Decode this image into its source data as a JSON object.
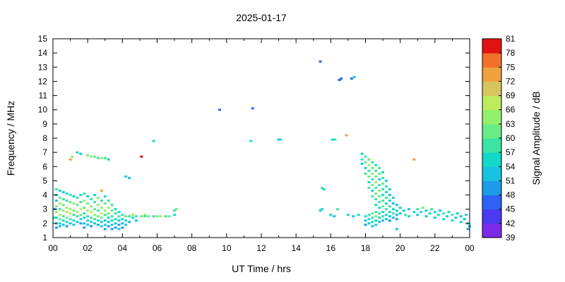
{
  "chart_data": {
    "type": "scatter",
    "title": "2025-01-17",
    "xlabel": "UT Time / hrs",
    "ylabel": "Frequency / MHz",
    "colorbar_label": "Signal Amplitude / dB",
    "xlim": [
      0,
      24
    ],
    "ylim": [
      1,
      15
    ],
    "x_tick_values": [
      0,
      2,
      4,
      6,
      8,
      10,
      12,
      14,
      16,
      18,
      20,
      22,
      24
    ],
    "x_tick_labels": [
      "00",
      "02",
      "04",
      "06",
      "08",
      "10",
      "12",
      "14",
      "16",
      "18",
      "20",
      "22",
      "00"
    ],
    "x_minor_tick_values": [
      1,
      3,
      5,
      7,
      9,
      11,
      13,
      15,
      17,
      19,
      21,
      23
    ],
    "y_tick_values": [
      1,
      2,
      3,
      4,
      5,
      6,
      7,
      8,
      9,
      10,
      11,
      12,
      13,
      14,
      15
    ],
    "colorbar": {
      "min": 39,
      "max": 81,
      "step": 3,
      "tick_values": [
        39,
        42,
        45,
        48,
        51,
        54,
        57,
        60,
        63,
        66,
        69,
        72,
        75,
        78,
        81
      ],
      "band_colors": [
        "#7D2AE8",
        "#4A3BF0",
        "#2E62F5",
        "#1E9BE8",
        "#17C3E3",
        "#12D9C8",
        "#3BE3A4",
        "#69EC85",
        "#93F06C",
        "#BCEB5C",
        "#D6C55F",
        "#EDA13F",
        "#F3702A",
        "#E31212"
      ]
    },
    "points": [
      [
        0.1,
        3.0,
        51
      ],
      [
        0.1,
        2.4,
        54
      ],
      [
        0.2,
        4.4,
        57
      ],
      [
        0.2,
        4.0,
        54
      ],
      [
        0.2,
        3.6,
        51
      ],
      [
        0.2,
        3.2,
        60
      ],
      [
        0.2,
        2.8,
        63
      ],
      [
        0.2,
        2.4,
        54
      ],
      [
        0.2,
        2.0,
        51
      ],
      [
        0.2,
        1.7,
        48
      ],
      [
        0.4,
        4.3,
        54
      ],
      [
        0.4,
        3.8,
        60
      ],
      [
        0.4,
        3.4,
        63
      ],
      [
        0.4,
        3.0,
        57
      ],
      [
        0.4,
        2.6,
        66
      ],
      [
        0.4,
        2.3,
        60
      ],
      [
        0.4,
        2.0,
        54
      ],
      [
        0.4,
        1.8,
        51
      ],
      [
        0.6,
        4.2,
        51
      ],
      [
        0.6,
        3.7,
        57
      ],
      [
        0.6,
        3.3,
        60
      ],
      [
        0.6,
        2.9,
        63
      ],
      [
        0.6,
        2.5,
        57
      ],
      [
        0.6,
        2.2,
        54
      ],
      [
        0.6,
        1.9,
        51
      ],
      [
        0.8,
        4.1,
        54
      ],
      [
        0.8,
        3.6,
        57
      ],
      [
        0.8,
        3.1,
        63
      ],
      [
        0.8,
        2.8,
        69
      ],
      [
        0.8,
        2.4,
        60
      ],
      [
        0.8,
        2.1,
        54
      ],
      [
        0.8,
        1.8,
        48
      ],
      [
        1.0,
        6.5,
        72
      ],
      [
        1.0,
        4.0,
        57
      ],
      [
        1.0,
        3.5,
        60
      ],
      [
        1.0,
        3.0,
        63
      ],
      [
        1.0,
        2.7,
        66
      ],
      [
        1.0,
        2.3,
        57
      ],
      [
        1.0,
        2.0,
        51
      ],
      [
        1.1,
        6.7,
        63
      ],
      [
        1.2,
        3.9,
        54
      ],
      [
        1.2,
        3.4,
        63
      ],
      [
        1.2,
        2.9,
        60
      ],
      [
        1.2,
        2.6,
        57
      ],
      [
        1.2,
        2.2,
        54
      ],
      [
        1.2,
        1.9,
        51
      ],
      [
        1.4,
        7.0,
        54
      ],
      [
        1.4,
        3.8,
        57
      ],
      [
        1.4,
        3.3,
        60
      ],
      [
        1.4,
        2.8,
        63
      ],
      [
        1.4,
        2.5,
        57
      ],
      [
        1.4,
        2.1,
        51
      ],
      [
        1.6,
        6.9,
        51
      ],
      [
        1.6,
        4.0,
        54
      ],
      [
        1.6,
        3.5,
        57
      ],
      [
        1.6,
        3.0,
        66
      ],
      [
        1.6,
        2.6,
        60
      ],
      [
        1.6,
        2.3,
        54
      ],
      [
        1.6,
        2.0,
        48
      ],
      [
        1.8,
        4.1,
        57
      ],
      [
        1.8,
        3.6,
        63
      ],
      [
        1.8,
        3.1,
        60
      ],
      [
        1.8,
        2.7,
        57
      ],
      [
        1.8,
        2.4,
        54
      ],
      [
        1.8,
        2.0,
        51
      ],
      [
        1.8,
        1.7,
        48
      ],
      [
        2.0,
        6.8,
        60
      ],
      [
        2.0,
        3.9,
        54
      ],
      [
        2.0,
        3.4,
        60
      ],
      [
        2.0,
        2.9,
        63
      ],
      [
        2.0,
        2.5,
        57
      ],
      [
        2.0,
        2.2,
        54
      ],
      [
        2.0,
        1.9,
        51
      ],
      [
        2.2,
        6.7,
        63
      ],
      [
        2.2,
        3.7,
        57
      ],
      [
        2.2,
        3.2,
        63
      ],
      [
        2.2,
        2.8,
        66
      ],
      [
        2.2,
        2.4,
        57
      ],
      [
        2.2,
        2.1,
        54
      ],
      [
        2.2,
        1.8,
        48
      ],
      [
        2.4,
        6.7,
        60
      ],
      [
        2.4,
        4.0,
        54
      ],
      [
        2.4,
        3.5,
        57
      ],
      [
        2.4,
        3.0,
        60
      ],
      [
        2.4,
        2.6,
        63
      ],
      [
        2.4,
        2.3,
        57
      ],
      [
        2.4,
        2.0,
        51
      ],
      [
        2.6,
        6.6,
        57
      ],
      [
        2.6,
        3.8,
        60
      ],
      [
        2.6,
        3.3,
        63
      ],
      [
        2.6,
        2.9,
        57
      ],
      [
        2.6,
        2.5,
        60
      ],
      [
        2.6,
        2.2,
        54
      ],
      [
        2.6,
        1.9,
        48
      ],
      [
        2.8,
        6.6,
        63
      ],
      [
        2.8,
        4.3,
        72
      ],
      [
        2.8,
        3.6,
        57
      ],
      [
        2.8,
        3.1,
        63
      ],
      [
        2.8,
        2.7,
        66
      ],
      [
        2.8,
        2.4,
        60
      ],
      [
        2.8,
        2.1,
        54
      ],
      [
        2.8,
        1.8,
        51
      ],
      [
        3.0,
        6.6,
        57
      ],
      [
        3.0,
        3.9,
        54
      ],
      [
        3.0,
        3.4,
        60
      ],
      [
        3.0,
        2.9,
        63
      ],
      [
        3.0,
        2.6,
        57
      ],
      [
        3.0,
        2.2,
        51
      ],
      [
        3.0,
        1.9,
        54
      ],
      [
        3.0,
        1.6,
        48
      ],
      [
        3.2,
        6.5,
        54
      ],
      [
        3.2,
        3.6,
        57
      ],
      [
        3.2,
        3.1,
        63
      ],
      [
        3.2,
        2.7,
        60
      ],
      [
        3.2,
        2.4,
        54
      ],
      [
        3.2,
        2.1,
        51
      ],
      [
        3.2,
        1.8,
        48
      ],
      [
        3.4,
        3.3,
        57
      ],
      [
        3.4,
        2.9,
        60
      ],
      [
        3.4,
        2.5,
        57
      ],
      [
        3.4,
        2.2,
        54
      ],
      [
        3.4,
        1.9,
        51
      ],
      [
        3.4,
        1.6,
        48
      ],
      [
        3.6,
        3.0,
        54
      ],
      [
        3.6,
        2.7,
        57
      ],
      [
        3.6,
        2.3,
        54
      ],
      [
        3.6,
        2.0,
        51
      ],
      [
        3.6,
        1.7,
        48
      ],
      [
        3.8,
        2.8,
        54
      ],
      [
        3.8,
        2.5,
        57
      ],
      [
        3.8,
        2.2,
        51
      ],
      [
        3.8,
        1.9,
        48
      ],
      [
        3.8,
        1.6,
        51
      ],
      [
        4.0,
        2.6,
        57
      ],
      [
        4.0,
        2.3,
        54
      ],
      [
        4.0,
        2.0,
        51
      ],
      [
        4.0,
        1.7,
        48
      ],
      [
        4.2,
        5.3,
        54
      ],
      [
        4.2,
        2.5,
        60
      ],
      [
        4.2,
        2.2,
        54
      ],
      [
        4.2,
        1.9,
        51
      ],
      [
        4.4,
        5.2,
        51
      ],
      [
        4.4,
        2.5,
        57
      ],
      [
        4.4,
        2.1,
        51
      ],
      [
        4.6,
        2.6,
        63
      ],
      [
        4.6,
        2.4,
        54
      ],
      [
        4.8,
        2.5,
        57
      ],
      [
        4.8,
        2.2,
        51
      ],
      [
        5.1,
        6.7,
        81
      ],
      [
        5.1,
        2.5,
        60
      ],
      [
        5.3,
        2.6,
        63
      ],
      [
        5.3,
        2.5,
        57
      ],
      [
        5.5,
        2.5,
        60
      ],
      [
        5.8,
        7.8,
        54
      ],
      [
        5.8,
        2.5,
        57
      ],
      [
        6.0,
        2.5,
        60
      ],
      [
        6.2,
        2.5,
        63
      ],
      [
        6.5,
        2.5,
        57
      ],
      [
        6.7,
        2.5,
        60
      ],
      [
        7.0,
        2.9,
        57
      ],
      [
        7.0,
        2.6,
        54
      ],
      [
        7.1,
        3.0,
        60
      ],
      [
        9.6,
        10.0,
        46
      ],
      [
        11.4,
        7.8,
        54
      ],
      [
        11.5,
        10.1,
        46
      ],
      [
        13.0,
        7.9,
        51
      ],
      [
        13.1,
        7.9,
        54
      ],
      [
        15.4,
        13.4,
        46
      ],
      [
        15.4,
        2.9,
        51
      ],
      [
        15.5,
        3.0,
        54
      ],
      [
        15.5,
        4.5,
        57
      ],
      [
        15.6,
        4.4,
        54
      ],
      [
        16.0,
        2.6,
        54
      ],
      [
        16.1,
        7.9,
        54
      ],
      [
        16.2,
        2.5,
        51
      ],
      [
        16.25,
        7.9,
        57
      ],
      [
        16.4,
        3.0,
        57
      ],
      [
        16.5,
        12.1,
        46
      ],
      [
        16.6,
        12.2,
        45
      ],
      [
        16.9,
        8.2,
        72
      ],
      [
        17.0,
        2.6,
        54
      ],
      [
        17.2,
        12.2,
        46
      ],
      [
        17.3,
        2.5,
        51
      ],
      [
        17.35,
        12.3,
        51
      ],
      [
        17.6,
        2.6,
        54
      ],
      [
        17.8,
        6.9,
        54
      ],
      [
        17.8,
        6.5,
        57
      ],
      [
        17.8,
        6.2,
        51
      ],
      [
        18.0,
        6.7,
        57
      ],
      [
        18.0,
        6.3,
        60
      ],
      [
        18.0,
        5.9,
        54
      ],
      [
        18.0,
        5.5,
        57
      ],
      [
        18.0,
        2.5,
        54
      ],
      [
        18.0,
        2.2,
        51
      ],
      [
        18.0,
        1.9,
        48
      ],
      [
        18.2,
        6.5,
        60
      ],
      [
        18.2,
        6.1,
        63
      ],
      [
        18.2,
        5.7,
        57
      ],
      [
        18.2,
        5.3,
        60
      ],
      [
        18.2,
        4.9,
        54
      ],
      [
        18.2,
        4.5,
        57
      ],
      [
        18.2,
        2.6,
        57
      ],
      [
        18.2,
        2.3,
        54
      ],
      [
        18.2,
        2.0,
        51
      ],
      [
        18.4,
        6.3,
        57
      ],
      [
        18.4,
        5.9,
        60
      ],
      [
        18.4,
        5.5,
        63
      ],
      [
        18.4,
        5.1,
        57
      ],
      [
        18.4,
        4.7,
        60
      ],
      [
        18.4,
        4.3,
        54
      ],
      [
        18.4,
        3.9,
        57
      ],
      [
        18.4,
        2.7,
        60
      ],
      [
        18.4,
        2.4,
        57
      ],
      [
        18.4,
        2.1,
        54
      ],
      [
        18.4,
        1.8,
        51
      ],
      [
        18.6,
        6.1,
        54
      ],
      [
        18.6,
        5.7,
        57
      ],
      [
        18.6,
        5.3,
        60
      ],
      [
        18.6,
        4.9,
        63
      ],
      [
        18.6,
        4.5,
        57
      ],
      [
        18.6,
        4.1,
        60
      ],
      [
        18.6,
        3.7,
        57
      ],
      [
        18.6,
        3.3,
        54
      ],
      [
        18.6,
        2.8,
        57
      ],
      [
        18.6,
        2.5,
        60
      ],
      [
        18.6,
        2.2,
        54
      ],
      [
        18.6,
        1.9,
        51
      ],
      [
        18.8,
        5.9,
        57
      ],
      [
        18.8,
        5.5,
        60
      ],
      [
        18.8,
        5.1,
        54
      ],
      [
        18.8,
        4.7,
        57
      ],
      [
        18.8,
        4.3,
        63
      ],
      [
        18.8,
        3.9,
        60
      ],
      [
        18.8,
        3.5,
        57
      ],
      [
        18.8,
        3.1,
        54
      ],
      [
        18.8,
        2.7,
        57
      ],
      [
        18.8,
        2.4,
        54
      ],
      [
        18.8,
        2.1,
        51
      ],
      [
        19.0,
        5.6,
        54
      ],
      [
        19.0,
        5.2,
        57
      ],
      [
        19.0,
        4.8,
        60
      ],
      [
        19.0,
        4.4,
        57
      ],
      [
        19.0,
        4.0,
        54
      ],
      [
        19.0,
        3.6,
        57
      ],
      [
        19.0,
        3.2,
        60
      ],
      [
        19.0,
        2.8,
        54
      ],
      [
        19.0,
        2.5,
        57
      ],
      [
        19.0,
        2.2,
        51
      ],
      [
        19.2,
        5.0,
        54
      ],
      [
        19.2,
        4.6,
        57
      ],
      [
        19.2,
        4.2,
        54
      ],
      [
        19.2,
        3.8,
        57
      ],
      [
        19.2,
        3.4,
        54
      ],
      [
        19.2,
        3.0,
        57
      ],
      [
        19.2,
        2.6,
        54
      ],
      [
        19.2,
        2.3,
        51
      ],
      [
        19.4,
        4.4,
        54
      ],
      [
        19.4,
        4.0,
        51
      ],
      [
        19.4,
        3.6,
        54
      ],
      [
        19.4,
        3.2,
        57
      ],
      [
        19.4,
        2.8,
        54
      ],
      [
        19.4,
        2.5,
        51
      ],
      [
        19.4,
        2.2,
        48
      ],
      [
        19.6,
        3.8,
        54
      ],
      [
        19.6,
        3.4,
        51
      ],
      [
        19.6,
        3.0,
        54
      ],
      [
        19.6,
        2.7,
        57
      ],
      [
        19.6,
        2.4,
        51
      ],
      [
        19.8,
        3.3,
        51
      ],
      [
        19.8,
        2.9,
        54
      ],
      [
        19.8,
        2.6,
        51
      ],
      [
        19.8,
        2.3,
        48
      ],
      [
        19.8,
        1.6,
        51
      ],
      [
        20.0,
        3.1,
        54
      ],
      [
        20.0,
        2.7,
        51
      ],
      [
        20.2,
        2.9,
        54
      ],
      [
        20.3,
        2.6,
        57
      ],
      [
        20.5,
        3.0,
        51
      ],
      [
        20.5,
        2.5,
        54
      ],
      [
        20.8,
        6.5,
        72
      ],
      [
        20.8,
        2.8,
        54
      ],
      [
        21.0,
        3.0,
        57
      ],
      [
        21.0,
        2.6,
        51
      ],
      [
        21.2,
        2.8,
        54
      ],
      [
        21.3,
        3.1,
        60
      ],
      [
        21.5,
        2.9,
        54
      ],
      [
        21.5,
        2.5,
        51
      ],
      [
        21.7,
        2.7,
        54
      ],
      [
        21.8,
        3.0,
        57
      ],
      [
        22.0,
        2.8,
        54
      ],
      [
        22.0,
        2.4,
        51
      ],
      [
        22.2,
        2.6,
        54
      ],
      [
        22.3,
        2.9,
        51
      ],
      [
        22.5,
        2.7,
        57
      ],
      [
        22.5,
        2.3,
        54
      ],
      [
        22.7,
        2.5,
        51
      ],
      [
        22.8,
        2.8,
        54
      ],
      [
        23.0,
        2.6,
        57
      ],
      [
        23.0,
        2.2,
        54
      ],
      [
        23.2,
        2.4,
        51
      ],
      [
        23.3,
        2.7,
        54
      ],
      [
        23.5,
        2.5,
        51
      ],
      [
        23.5,
        2.1,
        54
      ],
      [
        23.7,
        2.3,
        51
      ],
      [
        23.8,
        2.6,
        54
      ],
      [
        23.9,
        2.0,
        51
      ],
      [
        23.9,
        1.6,
        48
      ],
      [
        24.0,
        1.8,
        51
      ]
    ]
  }
}
